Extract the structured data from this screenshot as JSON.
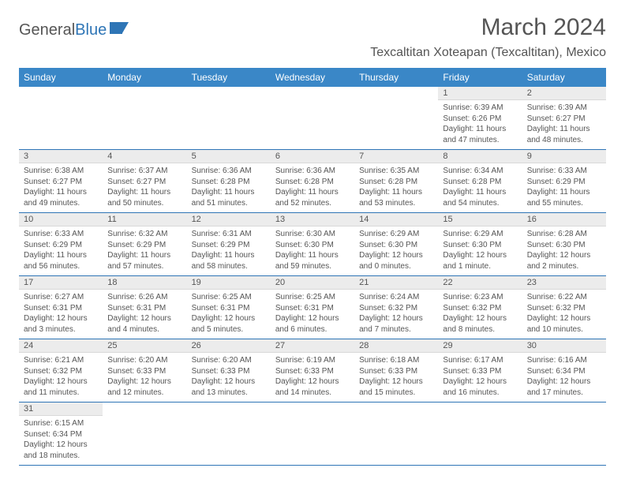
{
  "brand": {
    "part1": "General",
    "part2": "Blue"
  },
  "title": "March 2024",
  "location": "Texcaltitan Xoteapan (Texcaltitan), Mexico",
  "colors": {
    "header_bg": "#3a87c7",
    "header_text": "#ffffff",
    "border": "#2e75b6",
    "daynum_bg": "#ececec",
    "text": "#555555",
    "background": "#ffffff"
  },
  "typography": {
    "title_fontsize": 30,
    "location_fontsize": 16,
    "header_fontsize": 12,
    "daynum_fontsize": 11,
    "body_fontsize": 10
  },
  "weekdays": [
    "Sunday",
    "Monday",
    "Tuesday",
    "Wednesday",
    "Thursday",
    "Friday",
    "Saturday"
  ],
  "weeks": [
    [
      null,
      null,
      null,
      null,
      null,
      {
        "n": "1",
        "sunrise": "6:39 AM",
        "sunset": "6:26 PM",
        "daylight": "11 hours and 47 minutes."
      },
      {
        "n": "2",
        "sunrise": "6:39 AM",
        "sunset": "6:27 PM",
        "daylight": "11 hours and 48 minutes."
      }
    ],
    [
      {
        "n": "3",
        "sunrise": "6:38 AM",
        "sunset": "6:27 PM",
        "daylight": "11 hours and 49 minutes."
      },
      {
        "n": "4",
        "sunrise": "6:37 AM",
        "sunset": "6:27 PM",
        "daylight": "11 hours and 50 minutes."
      },
      {
        "n": "5",
        "sunrise": "6:36 AM",
        "sunset": "6:28 PM",
        "daylight": "11 hours and 51 minutes."
      },
      {
        "n": "6",
        "sunrise": "6:36 AM",
        "sunset": "6:28 PM",
        "daylight": "11 hours and 52 minutes."
      },
      {
        "n": "7",
        "sunrise": "6:35 AM",
        "sunset": "6:28 PM",
        "daylight": "11 hours and 53 minutes."
      },
      {
        "n": "8",
        "sunrise": "6:34 AM",
        "sunset": "6:28 PM",
        "daylight": "11 hours and 54 minutes."
      },
      {
        "n": "9",
        "sunrise": "6:33 AM",
        "sunset": "6:29 PM",
        "daylight": "11 hours and 55 minutes."
      }
    ],
    [
      {
        "n": "10",
        "sunrise": "6:33 AM",
        "sunset": "6:29 PM",
        "daylight": "11 hours and 56 minutes."
      },
      {
        "n": "11",
        "sunrise": "6:32 AM",
        "sunset": "6:29 PM",
        "daylight": "11 hours and 57 minutes."
      },
      {
        "n": "12",
        "sunrise": "6:31 AM",
        "sunset": "6:29 PM",
        "daylight": "11 hours and 58 minutes."
      },
      {
        "n": "13",
        "sunrise": "6:30 AM",
        "sunset": "6:30 PM",
        "daylight": "11 hours and 59 minutes."
      },
      {
        "n": "14",
        "sunrise": "6:29 AM",
        "sunset": "6:30 PM",
        "daylight": "12 hours and 0 minutes."
      },
      {
        "n": "15",
        "sunrise": "6:29 AM",
        "sunset": "6:30 PM",
        "daylight": "12 hours and 1 minute."
      },
      {
        "n": "16",
        "sunrise": "6:28 AM",
        "sunset": "6:30 PM",
        "daylight": "12 hours and 2 minutes."
      }
    ],
    [
      {
        "n": "17",
        "sunrise": "6:27 AM",
        "sunset": "6:31 PM",
        "daylight": "12 hours and 3 minutes."
      },
      {
        "n": "18",
        "sunrise": "6:26 AM",
        "sunset": "6:31 PM",
        "daylight": "12 hours and 4 minutes."
      },
      {
        "n": "19",
        "sunrise": "6:25 AM",
        "sunset": "6:31 PM",
        "daylight": "12 hours and 5 minutes."
      },
      {
        "n": "20",
        "sunrise": "6:25 AM",
        "sunset": "6:31 PM",
        "daylight": "12 hours and 6 minutes."
      },
      {
        "n": "21",
        "sunrise": "6:24 AM",
        "sunset": "6:32 PM",
        "daylight": "12 hours and 7 minutes."
      },
      {
        "n": "22",
        "sunrise": "6:23 AM",
        "sunset": "6:32 PM",
        "daylight": "12 hours and 8 minutes."
      },
      {
        "n": "23",
        "sunrise": "6:22 AM",
        "sunset": "6:32 PM",
        "daylight": "12 hours and 10 minutes."
      }
    ],
    [
      {
        "n": "24",
        "sunrise": "6:21 AM",
        "sunset": "6:32 PM",
        "daylight": "12 hours and 11 minutes."
      },
      {
        "n": "25",
        "sunrise": "6:20 AM",
        "sunset": "6:33 PM",
        "daylight": "12 hours and 12 minutes."
      },
      {
        "n": "26",
        "sunrise": "6:20 AM",
        "sunset": "6:33 PM",
        "daylight": "12 hours and 13 minutes."
      },
      {
        "n": "27",
        "sunrise": "6:19 AM",
        "sunset": "6:33 PM",
        "daylight": "12 hours and 14 minutes."
      },
      {
        "n": "28",
        "sunrise": "6:18 AM",
        "sunset": "6:33 PM",
        "daylight": "12 hours and 15 minutes."
      },
      {
        "n": "29",
        "sunrise": "6:17 AM",
        "sunset": "6:33 PM",
        "daylight": "12 hours and 16 minutes."
      },
      {
        "n": "30",
        "sunrise": "6:16 AM",
        "sunset": "6:34 PM",
        "daylight": "12 hours and 17 minutes."
      }
    ],
    [
      {
        "n": "31",
        "sunrise": "6:15 AM",
        "sunset": "6:34 PM",
        "daylight": "12 hours and 18 minutes."
      },
      null,
      null,
      null,
      null,
      null,
      null
    ]
  ]
}
